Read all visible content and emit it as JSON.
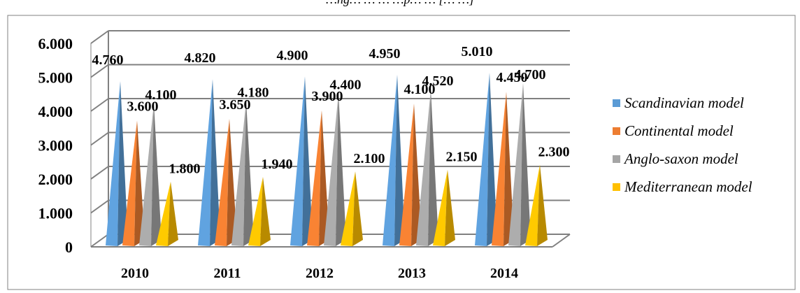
{
  "chart_data": {
    "type": "bar",
    "bar_shape": "pyramid",
    "title": "…ng… … … …p… … [… …]",
    "categories": [
      "2010",
      "2011",
      "2012",
      "2013",
      "2014"
    ],
    "ylim": [
      0,
      6000
    ],
    "yticks": [
      {
        "value": 0,
        "label": "0"
      },
      {
        "value": 1000,
        "label": "1.000"
      },
      {
        "value": 2000,
        "label": "2.000"
      },
      {
        "value": 3000,
        "label": "3.000"
      },
      {
        "value": 4000,
        "label": "4.000"
      },
      {
        "value": 5000,
        "label": "5.000"
      },
      {
        "value": 6000,
        "label": "6.000"
      }
    ],
    "grid": true,
    "legend_position": "right",
    "series": [
      {
        "name": "Scandinavian model",
        "color": "#5B9BD5",
        "values": [
          4760,
          4820,
          4900,
          4950,
          5010
        ],
        "labels": [
          "4.760",
          "4.820",
          "4.900",
          "4.950",
          "5.010"
        ]
      },
      {
        "name": "Continental model",
        "color": "#ED7D31",
        "values": [
          3600,
          3650,
          3900,
          4100,
          4450
        ],
        "labels": [
          "3.600",
          "3.650",
          "3.900",
          "4.100",
          "4.450"
        ]
      },
      {
        "name": "Anglo-saxon model",
        "color": "#A5A5A5",
        "values": [
          4100,
          4180,
          4400,
          4520,
          4700
        ],
        "labels": [
          "4.100",
          "4.180",
          "4.400",
          "4.520",
          "4.700"
        ]
      },
      {
        "name": "Mediterranean model",
        "color": "#FFC000",
        "values": [
          1800,
          1940,
          2100,
          2150,
          2300
        ],
        "labels": [
          "1.800",
          "1.940",
          "2.100",
          "2.150",
          "2.300"
        ]
      }
    ]
  }
}
